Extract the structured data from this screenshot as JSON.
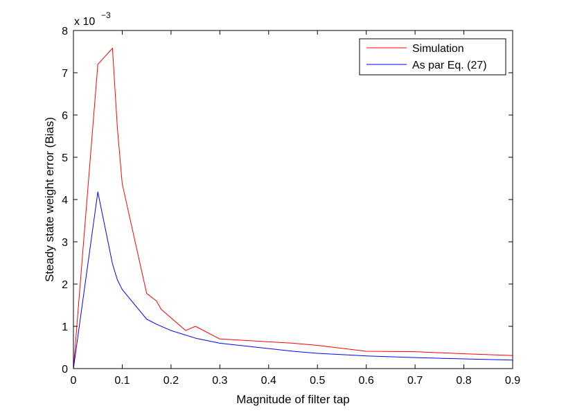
{
  "chart_data": {
    "type": "line",
    "title": "",
    "xlabel": "Magnitude of filter tap",
    "ylabel": "Steady state weight error (Bias)",
    "xlim": [
      0,
      0.9
    ],
    "ylim": [
      0,
      8
    ],
    "y_multiplier_label": "x 10",
    "y_multiplier_exponent": "−3",
    "x_ticks": [
      0,
      0.1,
      0.2,
      0.3,
      0.4,
      0.5,
      0.6,
      0.7,
      0.8,
      0.9
    ],
    "x_tick_labels": [
      "0",
      "0.1",
      "0.2",
      "0.3",
      "0.4",
      "0.5",
      "0.6",
      "0.7",
      "0.8",
      "0.9"
    ],
    "y_ticks": [
      0,
      1,
      2,
      3,
      4,
      5,
      6,
      7,
      8
    ],
    "y_tick_labels": [
      "0",
      "1",
      "2",
      "3",
      "4",
      "5",
      "6",
      "7",
      "8"
    ],
    "grid": false,
    "legend_position": "top-right",
    "series": [
      {
        "name": "Simulation",
        "color": "#ff0000",
        "x": [
          0,
          0.05,
          0.08,
          0.09,
          0.1,
          0.15,
          0.17,
          0.18,
          0.23,
          0.25,
          0.3,
          0.45,
          0.5,
          0.6,
          0.7,
          0.8,
          0.9
        ],
        "y": [
          0,
          7.2,
          7.58,
          5.7,
          4.37,
          1.78,
          1.6,
          1.4,
          0.9,
          1.0,
          0.7,
          0.6,
          0.55,
          0.41,
          0.4,
          0.35,
          0.31
        ]
      },
      {
        "name": "As par Eq. (27)",
        "color": "#0000ff",
        "x": [
          0,
          0.05,
          0.08,
          0.09,
          0.1,
          0.15,
          0.17,
          0.2,
          0.25,
          0.3,
          0.45,
          0.5,
          0.6,
          0.7,
          0.8,
          0.9
        ],
        "y": [
          0,
          4.18,
          2.48,
          2.1,
          1.87,
          1.17,
          1.05,
          0.9,
          0.72,
          0.6,
          0.41,
          0.36,
          0.3,
          0.26,
          0.23,
          0.2
        ]
      }
    ]
  }
}
